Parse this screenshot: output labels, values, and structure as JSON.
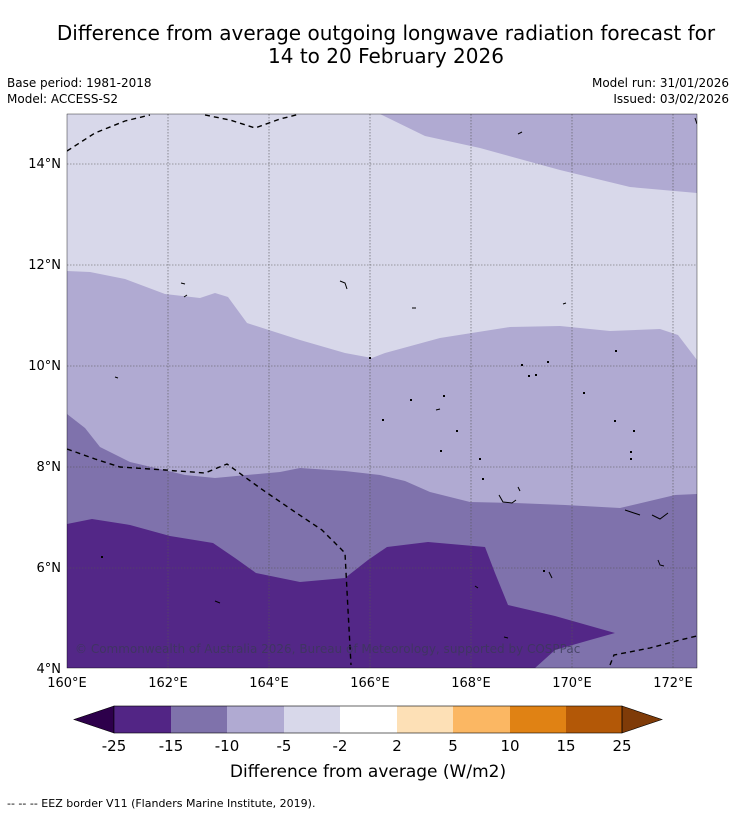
{
  "title": {
    "line1": "Difference from average outgoing longwave radiation forecast for",
    "line2": "14 to 20 February 2026"
  },
  "meta": {
    "base_period": "Base period: 1981-2018",
    "model": "Model: ACCESS-S2",
    "model_run": "Model run: 31/01/2026",
    "issued": "Issued: 03/02/2026"
  },
  "map": {
    "lon_range": [
      160,
      172.5
    ],
    "lat_range": [
      4,
      15
    ],
    "lat_ticks": [
      {
        "value": 14,
        "label": "14°N"
      },
      {
        "value": 12,
        "label": "12°N"
      },
      {
        "value": 10,
        "label": "10°N"
      },
      {
        "value": 8,
        "label": "8°N"
      },
      {
        "value": 6,
        "label": "6°N"
      },
      {
        "value": 4,
        "label": "4°N"
      }
    ],
    "lon_ticks": [
      {
        "value": 160,
        "label": "160°E"
      },
      {
        "value": 162,
        "label": "162°E"
      },
      {
        "value": 164,
        "label": "164°E"
      },
      {
        "value": 166,
        "label": "166°E"
      },
      {
        "value": 168,
        "label": "168°E"
      },
      {
        "value": 170,
        "label": "170°E"
      },
      {
        "value": 172,
        "label": "172°E"
      }
    ],
    "copyright": "© Commonwealth of Australia 2026, Bureau of Meteorology, supported by COSPPac",
    "bands": [
      {
        "level": "-5 to -2",
        "color": "#d8d8ea"
      },
      {
        "level": "-10 to -5",
        "color": "#b0aad2"
      },
      {
        "level": "-15 to -10",
        "color": "#7f72ac"
      },
      {
        "level": "-25 to -15",
        "color": "#532787"
      }
    ]
  },
  "colorbar": {
    "colors": [
      "#522585",
      "#7f72ab",
      "#b0aad2",
      "#d8d8ea",
      "#ffffff",
      "#fde0b6",
      "#fbb763",
      "#e08214",
      "#b35807"
    ],
    "under_color": "#2d004b",
    "over_color": "#7f3b08",
    "labels": [
      "-25",
      "-15",
      "-10",
      "-5",
      "-2",
      "2",
      "5",
      "10",
      "15",
      "25"
    ],
    "title": "Difference from average (W/m2)"
  },
  "footer": "--  --  -- EEZ border V11 (Flanders Marine Institute, 2019)."
}
